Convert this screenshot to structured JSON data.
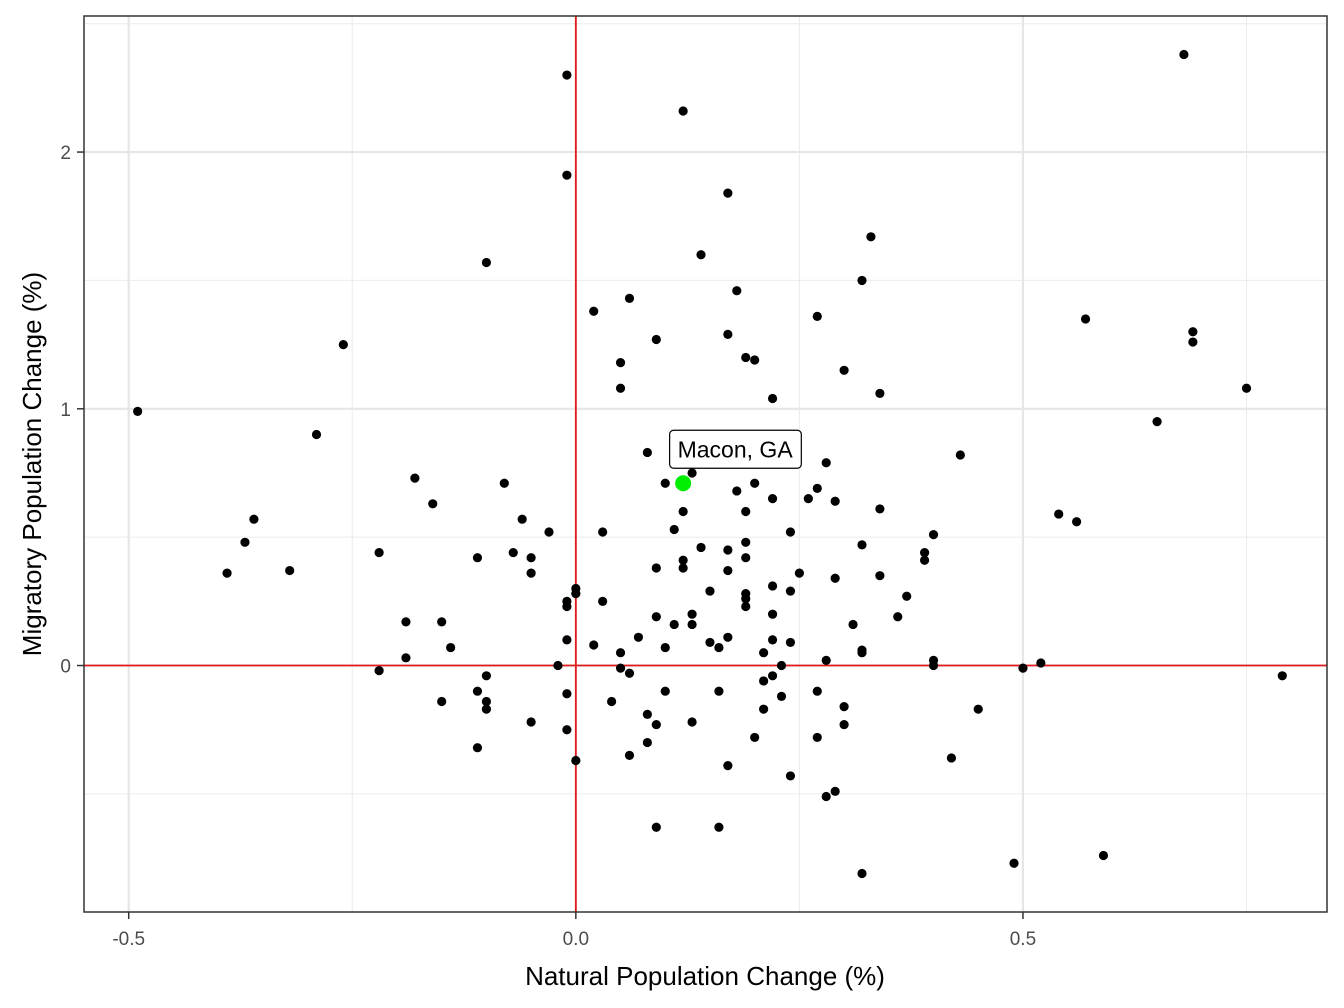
{
  "chart_data": {
    "type": "scatter",
    "title": "",
    "xlabel": "Natural Population Change (%)",
    "ylabel": "Migratory Population Change (%)",
    "xlim": [
      -0.55,
      0.84
    ],
    "ylim": [
      -0.96,
      2.53
    ],
    "x_ticks": [
      -0.5,
      0.0,
      0.5
    ],
    "x_tick_labels": [
      "-0.5",
      "0.0",
      "0.5"
    ],
    "y_ticks": [
      0,
      1,
      2
    ],
    "y_tick_labels": [
      "0",
      "1",
      "2"
    ],
    "grid": true,
    "reference_lines": {
      "x": 0,
      "y": 0,
      "color": "#e31a1c"
    },
    "point_color": "#000000",
    "highlight_color": "#00ee00",
    "highlight": {
      "label": "Macon, GA",
      "x": 0.12,
      "y": 0.71
    },
    "points": [
      [
        -0.49,
        0.99
      ],
      [
        -0.39,
        0.36
      ],
      [
        -0.37,
        0.48
      ],
      [
        -0.36,
        0.57
      ],
      [
        -0.32,
        0.37
      ],
      [
        -0.29,
        0.9
      ],
      [
        -0.26,
        1.25
      ],
      [
        -0.22,
        0.44
      ],
      [
        -0.22,
        -0.02
      ],
      [
        -0.19,
        0.17
      ],
      [
        -0.19,
        0.03
      ],
      [
        -0.18,
        0.73
      ],
      [
        -0.16,
        0.63
      ],
      [
        -0.15,
        0.17
      ],
      [
        -0.15,
        -0.14
      ],
      [
        -0.14,
        0.07
      ],
      [
        -0.11,
        0.42
      ],
      [
        -0.11,
        -0.1
      ],
      [
        -0.11,
        -0.32
      ],
      [
        -0.1,
        1.57
      ],
      [
        -0.1,
        -0.04
      ],
      [
        -0.1,
        -0.14
      ],
      [
        -0.1,
        -0.17
      ],
      [
        -0.08,
        0.71
      ],
      [
        -0.07,
        0.44
      ],
      [
        -0.06,
        0.57
      ],
      [
        -0.05,
        0.42
      ],
      [
        -0.05,
        0.36
      ],
      [
        -0.05,
        -0.22
      ],
      [
        -0.03,
        0.52
      ],
      [
        -0.02,
        0.0
      ],
      [
        -0.01,
        2.3
      ],
      [
        -0.01,
        1.91
      ],
      [
        -0.01,
        0.25
      ],
      [
        -0.01,
        0.23
      ],
      [
        -0.01,
        0.1
      ],
      [
        -0.01,
        -0.11
      ],
      [
        -0.01,
        -0.25
      ],
      [
        0.0,
        0.3
      ],
      [
        0.0,
        0.28
      ],
      [
        0.0,
        -0.37
      ],
      [
        0.02,
        1.38
      ],
      [
        0.02,
        0.08
      ],
      [
        0.03,
        0.52
      ],
      [
        0.03,
        0.25
      ],
      [
        0.04,
        -0.14
      ],
      [
        0.05,
        1.18
      ],
      [
        0.05,
        1.08
      ],
      [
        0.05,
        0.05
      ],
      [
        0.05,
        -0.01
      ],
      [
        0.06,
        1.43
      ],
      [
        0.06,
        -0.03
      ],
      [
        0.06,
        -0.35
      ],
      [
        0.07,
        0.11
      ],
      [
        0.08,
        0.83
      ],
      [
        0.08,
        -0.19
      ],
      [
        0.08,
        -0.3
      ],
      [
        0.09,
        1.27
      ],
      [
        0.09,
        0.38
      ],
      [
        0.09,
        0.19
      ],
      [
        0.09,
        -0.23
      ],
      [
        0.09,
        -0.63
      ],
      [
        0.1,
        0.71
      ],
      [
        0.1,
        0.07
      ],
      [
        0.1,
        -0.1
      ],
      [
        0.11,
        0.53
      ],
      [
        0.11,
        0.16
      ],
      [
        0.12,
        0.6
      ],
      [
        0.12,
        0.41
      ],
      [
        0.12,
        0.38
      ],
      [
        0.12,
        2.16
      ],
      [
        0.13,
        0.75
      ],
      [
        0.13,
        0.2
      ],
      [
        0.13,
        0.16
      ],
      [
        0.13,
        -0.22
      ],
      [
        0.14,
        1.6
      ],
      [
        0.14,
        0.46
      ],
      [
        0.15,
        0.29
      ],
      [
        0.15,
        0.09
      ],
      [
        0.16,
        0.07
      ],
      [
        0.16,
        -0.1
      ],
      [
        0.16,
        -0.63
      ],
      [
        0.17,
        1.84
      ],
      [
        0.17,
        1.29
      ],
      [
        0.17,
        0.45
      ],
      [
        0.17,
        0.37
      ],
      [
        0.17,
        0.11
      ],
      [
        0.17,
        -0.39
      ],
      [
        0.18,
        1.46
      ],
      [
        0.18,
        0.68
      ],
      [
        0.19,
        1.2
      ],
      [
        0.19,
        0.6
      ],
      [
        0.19,
        0.48
      ],
      [
        0.19,
        0.42
      ],
      [
        0.19,
        0.28
      ],
      [
        0.19,
        0.26
      ],
      [
        0.19,
        0.23
      ],
      [
        0.2,
        1.19
      ],
      [
        0.2,
        0.71
      ],
      [
        0.2,
        -0.28
      ],
      [
        0.21,
        0.05
      ],
      [
        0.21,
        -0.06
      ],
      [
        0.21,
        -0.17
      ],
      [
        0.22,
        1.04
      ],
      [
        0.22,
        0.65
      ],
      [
        0.22,
        0.31
      ],
      [
        0.22,
        0.2
      ],
      [
        0.22,
        0.1
      ],
      [
        0.22,
        -0.04
      ],
      [
        0.23,
        0.0
      ],
      [
        0.23,
        -0.12
      ],
      [
        0.24,
        0.52
      ],
      [
        0.24,
        0.29
      ],
      [
        0.24,
        0.09
      ],
      [
        0.24,
        -0.43
      ],
      [
        0.25,
        0.36
      ],
      [
        0.26,
        0.65
      ],
      [
        0.27,
        1.36
      ],
      [
        0.27,
        0.69
      ],
      [
        0.27,
        -0.28
      ],
      [
        0.27,
        -0.1
      ],
      [
        0.28,
        0.79
      ],
      [
        0.28,
        0.02
      ],
      [
        0.28,
        -0.51
      ],
      [
        0.29,
        0.64
      ],
      [
        0.29,
        0.34
      ],
      [
        0.29,
        -0.49
      ],
      [
        0.3,
        1.15
      ],
      [
        0.3,
        -0.16
      ],
      [
        0.3,
        -0.23
      ],
      [
        0.31,
        0.16
      ],
      [
        0.32,
        1.5
      ],
      [
        0.32,
        0.47
      ],
      [
        0.32,
        0.06
      ],
      [
        0.32,
        0.05
      ],
      [
        0.32,
        -0.81
      ],
      [
        0.33,
        1.67
      ],
      [
        0.34,
        1.06
      ],
      [
        0.34,
        0.61
      ],
      [
        0.34,
        0.35
      ],
      [
        0.36,
        0.19
      ],
      [
        0.37,
        0.27
      ],
      [
        0.39,
        0.44
      ],
      [
        0.39,
        0.41
      ],
      [
        0.4,
        0.51
      ],
      [
        0.4,
        0.02
      ],
      [
        0.4,
        0.0
      ],
      [
        0.42,
        -0.36
      ],
      [
        0.43,
        0.82
      ],
      [
        0.45,
        -0.17
      ],
      [
        0.49,
        -0.77
      ],
      [
        0.5,
        -0.01
      ],
      [
        0.52,
        0.01
      ],
      [
        0.54,
        0.59
      ],
      [
        0.56,
        0.56
      ],
      [
        0.57,
        1.35
      ],
      [
        0.59,
        -0.74
      ],
      [
        0.65,
        0.95
      ],
      [
        0.68,
        2.38
      ],
      [
        0.69,
        1.3
      ],
      [
        0.69,
        1.26
      ],
      [
        0.75,
        1.08
      ],
      [
        0.79,
        -0.04
      ]
    ]
  }
}
